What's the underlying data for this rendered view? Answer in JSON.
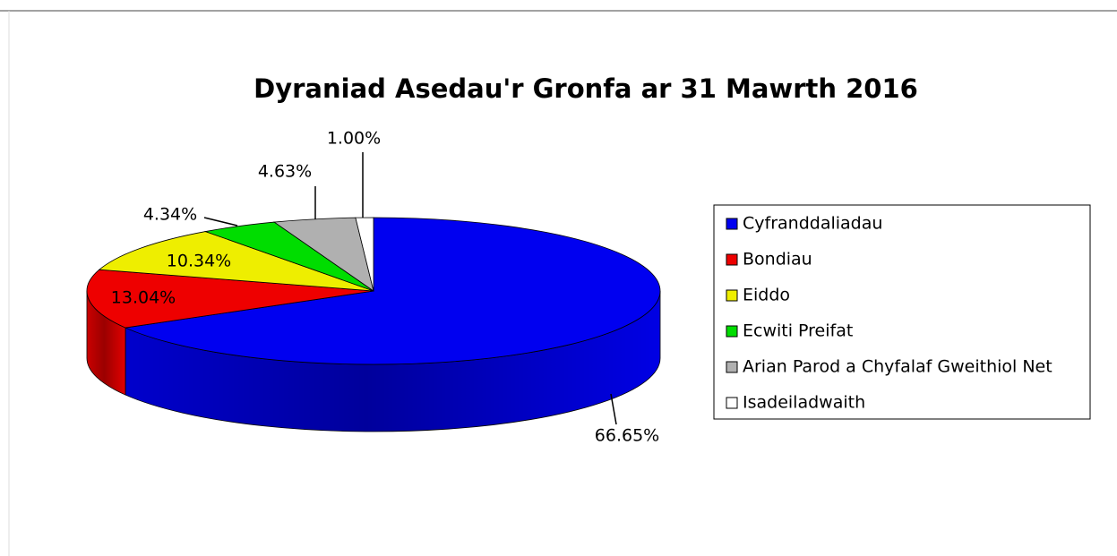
{
  "chart_data": {
    "type": "pie",
    "title": "Dyraniad Asedau'r Gronfa ar 31 Mawrth 2016",
    "categories": [
      "Cyfranddaliadau",
      "Bondiau",
      "Eiddo",
      "Ecwiti Preifat",
      "Arian Parod a Chyfalaf Gweithiol Net",
      "Isadeiladwaith"
    ],
    "values": [
      66.65,
      13.04,
      10.34,
      4.34,
      4.63,
      1.0
    ],
    "value_labels": [
      "66.65%",
      "13.04%",
      "10.34%",
      "4.34%",
      "4.63%",
      "1.00%"
    ],
    "colors": [
      "#0000f0",
      "#ee0000",
      "#eeee00",
      "#00dd00",
      "#b0b0b0",
      "#ffffff"
    ],
    "legend": "right"
  }
}
